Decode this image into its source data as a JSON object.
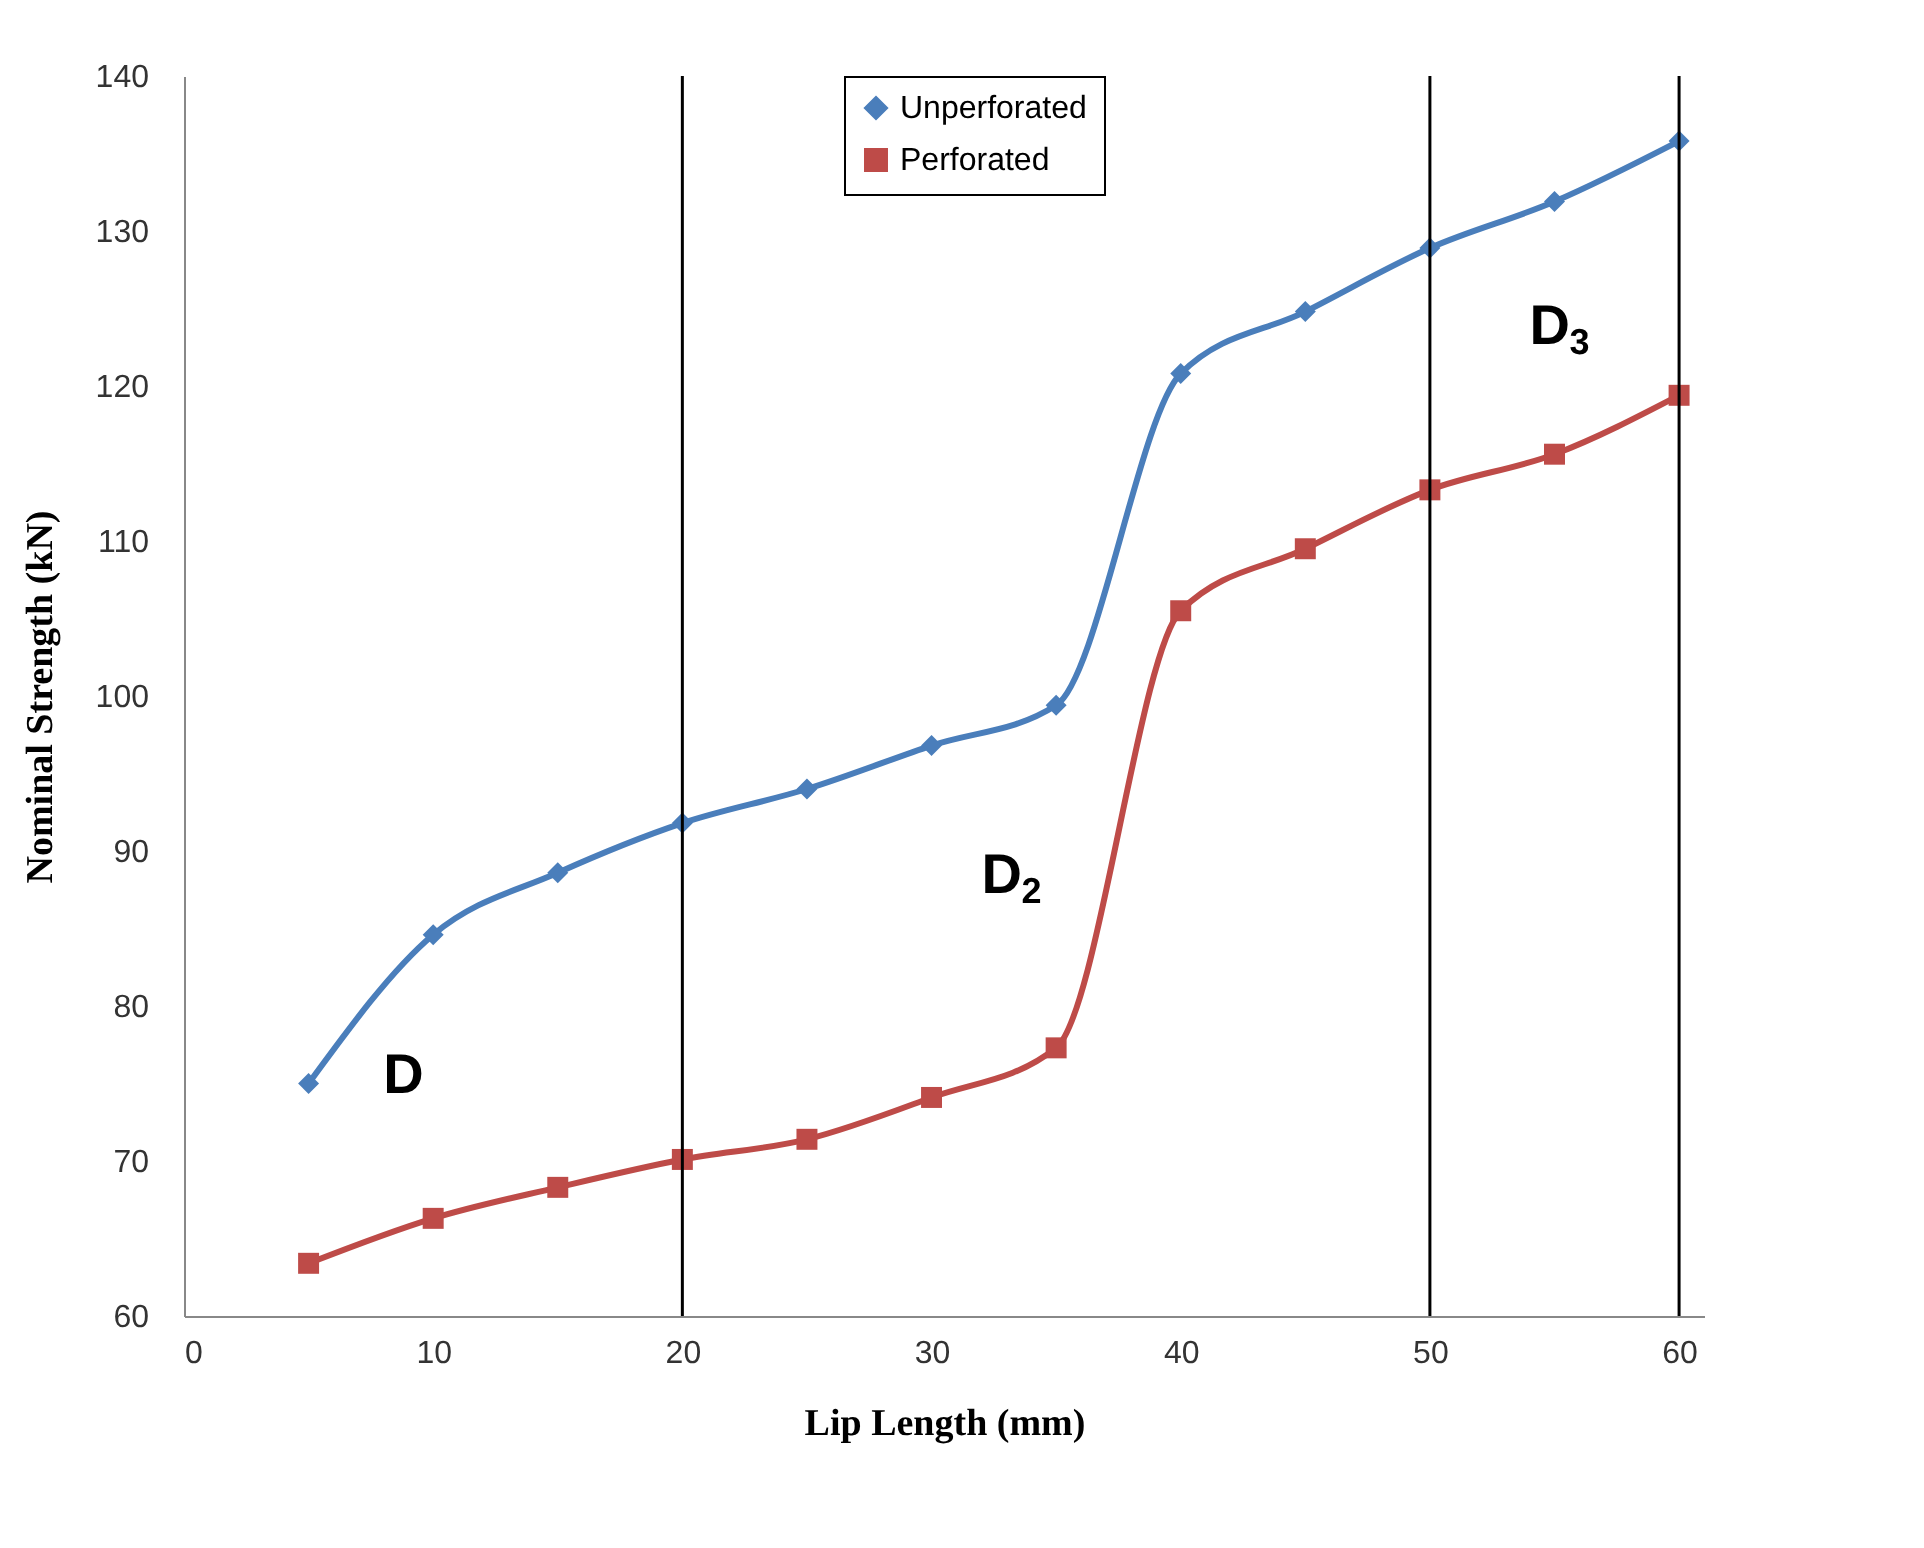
{
  "chart_data": {
    "type": "line",
    "xlabel": "Lip Length (mm)",
    "ylabel": "Nominal Strength (kN)",
    "x": [
      5,
      10,
      15,
      20,
      25,
      30,
      35,
      40,
      45,
      50,
      55,
      60
    ],
    "series": [
      {
        "name": "Unperforated",
        "color": "#4a7ebb",
        "marker": "diamond",
        "values": [
          75,
          84.6,
          88.6,
          91.8,
          94,
          96.8,
          99.4,
          120.8,
          124.8,
          128.9,
          131.9,
          135.8
        ]
      },
      {
        "name": "Perforated",
        "color": "#be4b48",
        "marker": "square",
        "values": [
          63.4,
          66.3,
          68.3,
          70.1,
          71.4,
          74.1,
          77.3,
          105.5,
          109.5,
          113.3,
          115.6,
          119.4
        ]
      }
    ],
    "xlim": [
      0,
      61
    ],
    "xticks": [
      0,
      10,
      20,
      30,
      40,
      50,
      60
    ],
    "ylim": [
      60,
      140
    ],
    "yticks": [
      60,
      70,
      80,
      90,
      100,
      110,
      120,
      130,
      140
    ],
    "ref_lines": [
      {
        "axis": "x",
        "value": 20,
        "color": "#000000"
      },
      {
        "axis": "x",
        "value": 50,
        "color": "#000000"
      },
      {
        "axis": "x",
        "value": 60,
        "color": "#000000"
      }
    ],
    "annotations": [
      "D",
      "D$_{2}$",
      "D$_{3}$"
    ],
    "legend": "top",
    "grid": false
  }
}
